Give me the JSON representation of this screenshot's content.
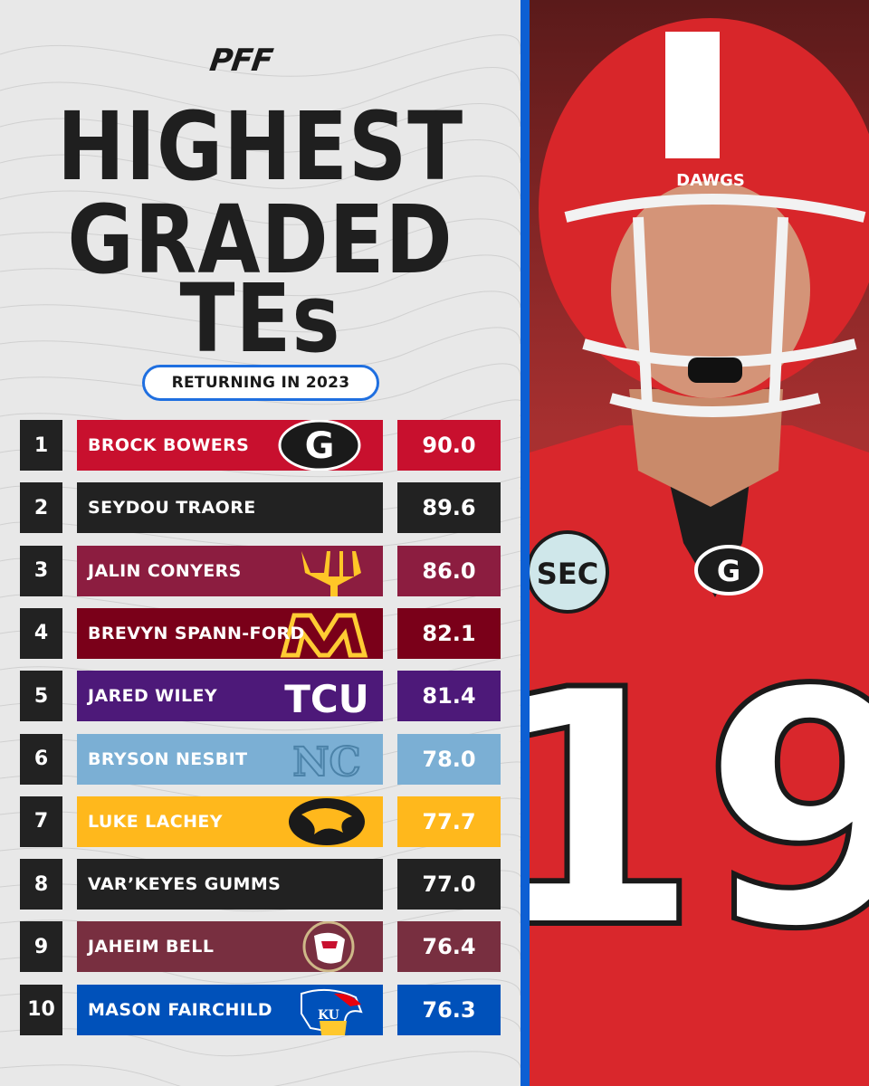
{
  "brand": {
    "logo_text": "PFF"
  },
  "title": {
    "line1": "HIGHEST",
    "line2": "GRADED",
    "line3": "TEs"
  },
  "subtitle": "RETURNING IN 2023",
  "colors": {
    "accent_blue": "#0d5fd3",
    "rank_bg": "#222222"
  },
  "rows": [
    {
      "rank": "1",
      "name": "BROCK BOWERS",
      "grade": "90.0",
      "team_logo": "georgia-g-icon",
      "color": "#c8102e"
    },
    {
      "rank": "2",
      "name": "SEYDOU TRAORE",
      "grade": "89.6",
      "team_logo": "none",
      "color": "#222222"
    },
    {
      "rank": "3",
      "name": "JALIN CONYERS",
      "grade": "86.0",
      "team_logo": "arizona-state-pitchfork-icon",
      "color": "#8c1d40"
    },
    {
      "rank": "4",
      "name": "BREVYN SPANN-FORD",
      "grade": "82.1",
      "team_logo": "minnesota-m-icon",
      "color": "#7a0019"
    },
    {
      "rank": "5",
      "name": "JARED WILEY",
      "grade": "81.4",
      "team_logo": "tcu-icon",
      "color": "#4d1979"
    },
    {
      "rank": "6",
      "name": "BRYSON NESBIT",
      "grade": "78.0",
      "team_logo": "north-carolina-nc-icon",
      "color": "#7bafd4"
    },
    {
      "rank": "7",
      "name": "LUKE LACHEY",
      "grade": "77.7",
      "team_logo": "iowa-hawk-icon",
      "color": "#ffb81c"
    },
    {
      "rank": "8",
      "name": "VAR’KEYES GUMMS",
      "grade": "77.0",
      "team_logo": "none",
      "color": "#222222"
    },
    {
      "rank": "9",
      "name": "JAHEIM BELL",
      "grade": "76.4",
      "team_logo": "florida-state-seminole-icon",
      "color": "#782f40"
    },
    {
      "rank": "10",
      "name": "MASON FAIRCHILD",
      "grade": "76.3",
      "team_logo": "kansas-jayhawk-icon",
      "color": "#0051ba"
    }
  ],
  "photo": {
    "helmet_text": "DAWGS",
    "jersey_number": "19",
    "conference_patch": "SEC",
    "subject": "georgia-tight-end-photo"
  }
}
